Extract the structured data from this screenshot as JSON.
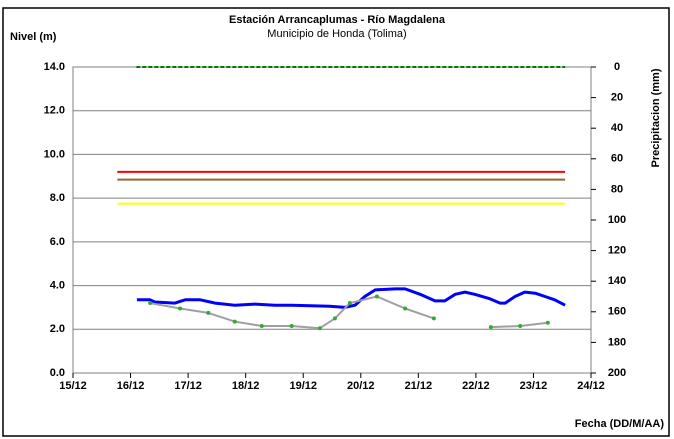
{
  "chart_data": {
    "type": "line",
    "title": "Estación Arrancaplumas - Río Magdalena",
    "subtitle": "Municipio de Honda (Tolima)",
    "y_label": "Nivel (m)",
    "y2_label": "Precipitacion (mm)",
    "x_label": "Fecha (DD/M/AA)",
    "xlim": [
      15,
      24
    ],
    "xticks": [
      {
        "value": 15,
        "label": "15/12"
      },
      {
        "value": 16,
        "label": "16/12"
      },
      {
        "value": 17,
        "label": "17/12"
      },
      {
        "value": 18,
        "label": "18/12"
      },
      {
        "value": 19,
        "label": "19/12"
      },
      {
        "value": 20,
        "label": "20/12"
      },
      {
        "value": 21,
        "label": "21/12"
      },
      {
        "value": 22,
        "label": "22/12"
      },
      {
        "value": 23,
        "label": "23/12"
      },
      {
        "value": 24,
        "label": "24/12"
      }
    ],
    "ylim": [
      0,
      14
    ],
    "yticks": [
      {
        "value": 0,
        "label": "0.0"
      },
      {
        "value": 2,
        "label": "2.0"
      },
      {
        "value": 4,
        "label": "4.0"
      },
      {
        "value": 6,
        "label": "6.0"
      },
      {
        "value": 8,
        "label": "8.0"
      },
      {
        "value": 10,
        "label": "10.0"
      },
      {
        "value": 12,
        "label": "12.0"
      },
      {
        "value": 14,
        "label": "14.0"
      }
    ],
    "y2lim": [
      0,
      200
    ],
    "y2_inverted": true,
    "y2ticks": [
      0,
      20,
      40,
      60,
      80,
      100,
      120,
      140,
      160,
      180,
      200
    ],
    "grid": true,
    "series": [
      {
        "color": "#ff0000",
        "width": 2,
        "x": [
          15.77,
          23.55
        ],
        "values": [
          9.2,
          9.2
        ]
      },
      {
        "color": "#996633",
        "width": 2,
        "x": [
          15.77,
          23.55
        ],
        "values": [
          8.85,
          8.85
        ]
      },
      {
        "color": "#ffff00",
        "width": 2,
        "x": [
          15.77,
          23.55
        ],
        "values": [
          7.75,
          7.75
        ]
      },
      {
        "color": "#008000",
        "width": 2,
        "dash": true,
        "axis": "y2",
        "x": [
          16.1,
          23.55
        ],
        "values": [
          0,
          0
        ]
      },
      {
        "color": "#0000ff",
        "width": 3,
        "x": [
          16.11,
          16.34,
          16.42,
          16.77,
          16.95,
          17.21,
          17.47,
          17.81,
          18.16,
          18.51,
          18.68,
          18.8,
          19.46,
          19.72,
          19.9,
          20.07,
          20.25,
          20.59,
          20.77,
          21.03,
          21.29,
          21.46,
          21.64,
          21.81,
          21.98,
          22.24,
          22.42,
          22.51,
          22.68,
          22.85,
          23.03,
          23.2,
          23.37,
          23.55
        ],
        "values": [
          3.35,
          3.35,
          3.25,
          3.2,
          3.35,
          3.35,
          3.2,
          3.1,
          3.15,
          3.1,
          3.1,
          3.1,
          3.05,
          3.0,
          3.1,
          3.5,
          3.8,
          3.85,
          3.85,
          3.6,
          3.3,
          3.3,
          3.6,
          3.7,
          3.6,
          3.4,
          3.2,
          3.2,
          3.5,
          3.7,
          3.65,
          3.5,
          3.35,
          3.1
        ]
      },
      {
        "color": "#a0a0a0",
        "width": 2,
        "marker_color": "#33aa33",
        "x": [
          16.34,
          16.86,
          17.35,
          17.81,
          18.28,
          18.8,
          19.29,
          19.55,
          19.81,
          20.28,
          20.77,
          21.27,
          21.8,
          22.26,
          22.77,
          23.25
        ],
        "values": [
          3.2,
          2.95,
          2.75,
          2.35,
          2.15,
          2.15,
          2.05,
          2.5,
          3.2,
          3.5,
          2.95,
          2.5,
          null,
          2.1,
          2.15,
          2.3
        ]
      }
    ]
  }
}
